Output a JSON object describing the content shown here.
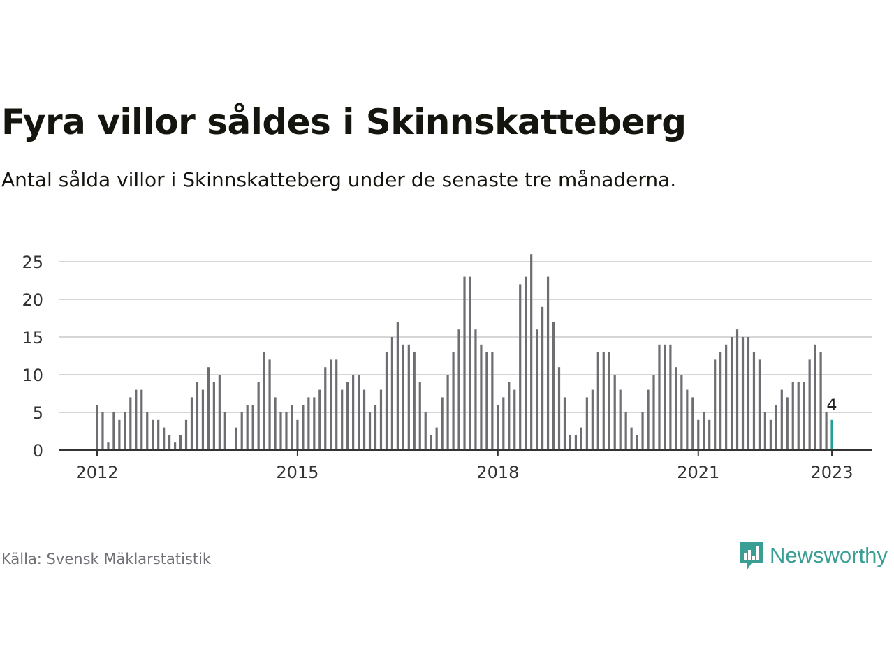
{
  "header": {
    "title": "Fyra villor såldes i Skinnskatteberg",
    "subtitle": "Antal sålda villor i Skinnskatteberg under de senaste tre månaderna."
  },
  "footer": {
    "source": "Källa: Svensk Mäklarstatistik",
    "brand": "Newsworthy"
  },
  "colors": {
    "bar": "#6d6d72",
    "highlight": "#1f9f96",
    "grid": "#d6d6d6",
    "axis": "#444444",
    "text": "#15150f",
    "brand": "#3a9e95"
  },
  "chart_data": {
    "type": "bar",
    "start": "2012-01",
    "end": "2023-01",
    "ylim": [
      0,
      26
    ],
    "yticks": [
      0,
      5,
      10,
      15,
      20,
      25
    ],
    "xticks": [
      "2012",
      "2015",
      "2018",
      "2021",
      "2023"
    ],
    "grid": true,
    "values": [
      6,
      5,
      1,
      5,
      4,
      5,
      7,
      8,
      8,
      5,
      4,
      4,
      3,
      2,
      1,
      2,
      4,
      7,
      9,
      8,
      11,
      9,
      10,
      5,
      0,
      3,
      5,
      6,
      6,
      9,
      13,
      12,
      7,
      5,
      5,
      6,
      4,
      6,
      7,
      7,
      8,
      11,
      12,
      12,
      8,
      9,
      10,
      10,
      8,
      5,
      6,
      8,
      13,
      15,
      17,
      14,
      14,
      13,
      9,
      5,
      2,
      3,
      7,
      10,
      13,
      16,
      23,
      23,
      16,
      14,
      13,
      13,
      6,
      7,
      9,
      8,
      22,
      23,
      26,
      16,
      19,
      23,
      17,
      11,
      7,
      2,
      2,
      3,
      7,
      8,
      13,
      13,
      13,
      10,
      8,
      5,
      3,
      2,
      5,
      8,
      10,
      14,
      14,
      14,
      11,
      10,
      8,
      7,
      4,
      5,
      4,
      12,
      13,
      14,
      15,
      16,
      15,
      15,
      13,
      12,
      5,
      4,
      6,
      8,
      7,
      9,
      9,
      9,
      12,
      14,
      13,
      5,
      4
    ],
    "highlight_label": "4"
  }
}
